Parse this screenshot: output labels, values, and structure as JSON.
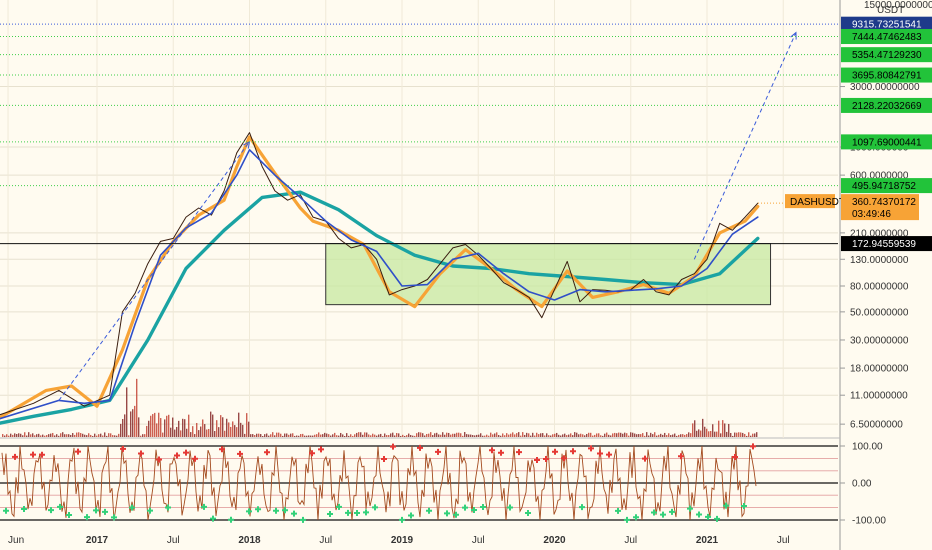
{
  "chart_data": {
    "type": "line",
    "symbol": "DASHUSDT",
    "currency_label": "USDT",
    "price_axis": {
      "scale": "log",
      "ticks": [
        "15000.00000000",
        "3000.00000000",
        "1000.000000",
        "600.0000000",
        "210.0000000",
        "130.0000000",
        "80.00000000",
        "50.00000000",
        "30.00000000",
        "18.00000000",
        "11.00000000",
        "6.50000000"
      ]
    },
    "time_axis": {
      "ticks": [
        "Jun",
        "2017",
        "Jul",
        "2018",
        "Jul",
        "2019",
        "Jul",
        "2020",
        "Jul",
        "2021",
        "Jul"
      ]
    },
    "horizontal_levels": [
      {
        "label": "9315.73251541",
        "value": 9315.73,
        "color": "#1e3a8a"
      },
      {
        "label": "7444.47462483",
        "value": 7444.47,
        "color": "#22c33a"
      },
      {
        "label": "5354.47129230",
        "value": 5354.47,
        "color": "#22c33a"
      },
      {
        "label": "3695.80842791",
        "value": 3695.81,
        "color": "#22c33a"
      },
      {
        "label": "2128.22032669",
        "value": 2128.22,
        "color": "#22c33a"
      },
      {
        "label": "1097.69000441",
        "value": 1097.69,
        "color": "#22c33a"
      },
      {
        "label": "495.94718752",
        "value": 495.95,
        "color": "#22c33a"
      },
      {
        "label": "172.94559539",
        "value": 172.95,
        "color": "#000000"
      }
    ],
    "last_price": {
      "label": "360.74370172",
      "value": 360.74,
      "countdown": "03:49:46",
      "color": "#f7a336"
    },
    "range_box": {
      "t_start": "2018-07",
      "t_end": "2021-06",
      "price_top": 172.95,
      "price_bottom": 57
    },
    "series": [
      {
        "name": "price",
        "points": [
          [
            "2016-05",
            7.5
          ],
          [
            "2016-08",
            9.5
          ],
          [
            "2016-10",
            12
          ],
          [
            "2016-12",
            9
          ],
          [
            "2017-02",
            11
          ],
          [
            "2017-03",
            50
          ],
          [
            "2017-04",
            70
          ],
          [
            "2017-05",
            120
          ],
          [
            "2017-06",
            180
          ],
          [
            "2017-07",
            190
          ],
          [
            "2017-08",
            280
          ],
          [
            "2017-09",
            330
          ],
          [
            "2017-10",
            290
          ],
          [
            "2017-11",
            450
          ],
          [
            "2017-12",
            900
          ],
          [
            "2018-01",
            1300
          ],
          [
            "2018-02",
            700
          ],
          [
            "2018-03",
            450
          ],
          [
            "2018-04",
            380
          ],
          [
            "2018-05",
            420
          ],
          [
            "2018-06",
            280
          ],
          [
            "2018-07",
            260
          ],
          [
            "2018-08",
            190
          ],
          [
            "2018-09",
            160
          ],
          [
            "2018-10",
            170
          ],
          [
            "2018-11",
            130
          ],
          [
            "2018-12",
            68
          ],
          [
            "2019-01",
            75
          ],
          [
            "2019-02",
            80
          ],
          [
            "2019-03",
            90
          ],
          [
            "2019-04",
            120
          ],
          [
            "2019-05",
            160
          ],
          [
            "2019-06",
            170
          ],
          [
            "2019-07",
            140
          ],
          [
            "2019-08",
            110
          ],
          [
            "2019-09",
            85
          ],
          [
            "2019-10",
            75
          ],
          [
            "2019-11",
            65
          ],
          [
            "2019-12",
            45
          ],
          [
            "2020-01",
            75
          ],
          [
            "2020-02",
            125
          ],
          [
            "2020-03",
            60
          ],
          [
            "2020-04",
            75
          ],
          [
            "2020-05",
            74
          ],
          [
            "2020-06",
            72
          ],
          [
            "2020-07",
            75
          ],
          [
            "2020-08",
            90
          ],
          [
            "2020-09",
            72
          ],
          [
            "2020-10",
            68
          ],
          [
            "2020-11",
            90
          ],
          [
            "2020-12",
            100
          ],
          [
            "2021-01",
            130
          ],
          [
            "2021-02",
            250
          ],
          [
            "2021-03",
            220
          ],
          [
            "2021-04",
            280
          ],
          [
            "2021-05",
            360
          ]
        ]
      },
      {
        "name": "",
        "color": "#2f4fc8",
        "points": [
          [
            "2016-05",
            7
          ],
          [
            "2016-10",
            10
          ],
          [
            "2016-12",
            9.5
          ],
          [
            "2017-02",
            10
          ],
          [
            "2017-04",
            40
          ],
          [
            "2017-06",
            140
          ],
          [
            "2017-08",
            230
          ],
          [
            "2017-10",
            300
          ],
          [
            "2017-12",
            600
          ],
          [
            "2018-01",
            950
          ],
          [
            "2018-03",
            600
          ],
          [
            "2018-05",
            400
          ],
          [
            "2018-07",
            260
          ],
          [
            "2018-09",
            185
          ],
          [
            "2018-11",
            150
          ],
          [
            "2019-01",
            80
          ],
          [
            "2019-03",
            82
          ],
          [
            "2019-05",
            130
          ],
          [
            "2019-07",
            145
          ],
          [
            "2019-09",
            100
          ],
          [
            "2019-11",
            72
          ],
          [
            "2020-01",
            62
          ],
          [
            "2020-03",
            75
          ],
          [
            "2020-05",
            72
          ],
          [
            "2020-07",
            74
          ],
          [
            "2020-09",
            76
          ],
          [
            "2020-11",
            80
          ],
          [
            "2021-01",
            110
          ],
          [
            "2021-03",
            205
          ],
          [
            "2021-05",
            280
          ]
        ]
      },
      {
        "name": "",
        "color": "#f7a336",
        "points": [
          [
            "2016-05",
            7
          ],
          [
            "2016-09",
            12
          ],
          [
            "2016-11",
            13
          ],
          [
            "2017-01",
            9
          ],
          [
            "2017-03",
            25
          ],
          [
            "2017-05",
            90
          ],
          [
            "2017-07",
            180
          ],
          [
            "2017-09",
            290
          ],
          [
            "2017-11",
            380
          ],
          [
            "2017-12",
            700
          ],
          [
            "2018-01",
            1200
          ],
          [
            "2018-03",
            620
          ],
          [
            "2018-05",
            330
          ],
          [
            "2018-06",
            260
          ],
          [
            "2018-08",
            220
          ],
          [
            "2018-10",
            170
          ],
          [
            "2018-12",
            72
          ],
          [
            "2019-02",
            55
          ],
          [
            "2019-04",
            100
          ],
          [
            "2019-06",
            155
          ],
          [
            "2019-08",
            110
          ],
          [
            "2019-10",
            75
          ],
          [
            "2019-12",
            55
          ],
          [
            "2020-02",
            105
          ],
          [
            "2020-04",
            65
          ],
          [
            "2020-06",
            72
          ],
          [
            "2020-08",
            82
          ],
          [
            "2020-10",
            70
          ],
          [
            "2020-12",
            95
          ],
          [
            "2021-02",
            210
          ],
          [
            "2021-04",
            260
          ],
          [
            "2021-05",
            340
          ]
        ]
      },
      {
        "name": "",
        "color": "#1aa3a3",
        "points": [
          [
            "2016-05",
            6.5
          ],
          [
            "2016-08",
            7.5
          ],
          [
            "2016-11",
            8.5
          ],
          [
            "2017-02",
            10
          ],
          [
            "2017-05",
            30
          ],
          [
            "2017-08",
            110
          ],
          [
            "2017-11",
            220
          ],
          [
            "2018-02",
            400
          ],
          [
            "2018-05",
            440
          ],
          [
            "2018-08",
            320
          ],
          [
            "2018-11",
            200
          ],
          [
            "2019-02",
            140
          ],
          [
            "2019-05",
            115
          ],
          [
            "2019-08",
            110
          ],
          [
            "2019-11",
            100
          ],
          [
            "2020-02",
            95
          ],
          [
            "2020-05",
            90
          ],
          [
            "2020-08",
            85
          ],
          [
            "2020-11",
            82
          ],
          [
            "2021-02",
            100
          ],
          [
            "2021-05",
            190
          ]
        ]
      }
    ],
    "trend_arrows": [
      {
        "from": [
          "2016-10",
          10
        ],
        "to": [
          "2018-01",
          1100
        ]
      },
      {
        "from": [
          "2020-12",
          130
        ],
        "to": [
          "2021-08",
          8000
        ]
      }
    ],
    "oscillator": {
      "ticks": [
        "100.00",
        "0.00",
        "-100.00"
      ],
      "levels": [
        100,
        0,
        -100
      ]
    }
  }
}
